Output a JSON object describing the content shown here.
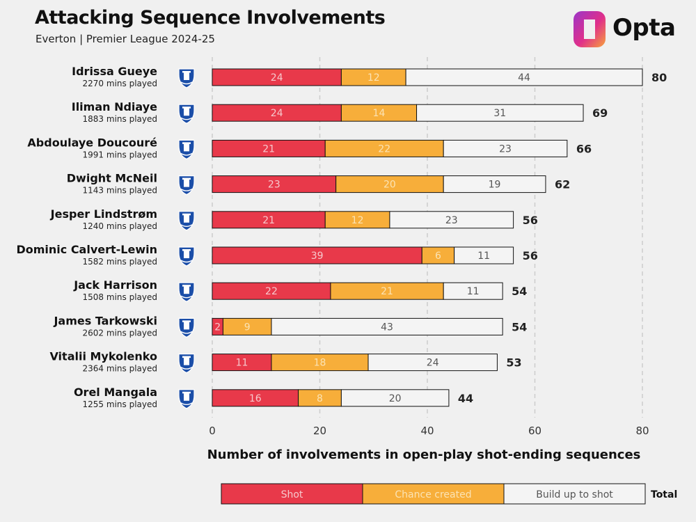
{
  "header": {
    "title": "Attacking Sequence Involvements",
    "subtitle": "Everton | Premier League 2024-25",
    "brand": "Opta"
  },
  "colors": {
    "shot": "#e8394a",
    "chance_created": "#f7ae3a",
    "build_up": "#f4f4f4",
    "bar_stroke": "#111111",
    "grid": "#cccccc",
    "background": "#f0f0f0"
  },
  "icons": {
    "row_icon": "everton-crest-icon",
    "brand_logo": "opta-logo-icon"
  },
  "chart_data": {
    "type": "bar",
    "orientation": "horizontal",
    "stacked": true,
    "categories": [
      "Idrissa Gueye",
      "Iliman Ndiaye",
      "Abdoulaye Doucouré",
      "Dwight McNeil",
      "Jesper Lindstrøm",
      "Dominic Calvert-Lewin",
      "Jack Harrison",
      "James Tarkowski",
      "Vitalii Mykolenko",
      "Orel Mangala"
    ],
    "minutes": [
      "2270 mins played",
      "1883 mins played",
      "1991 mins played",
      "1143 mins played",
      "1240 mins played",
      "1582 mins played",
      "1508 mins played",
      "2602 mins played",
      "2364 mins played",
      "1255 mins played"
    ],
    "series": [
      {
        "name": "Shot",
        "values": [
          24,
          24,
          21,
          23,
          21,
          39,
          22,
          2,
          11,
          16
        ]
      },
      {
        "name": "Chance created",
        "values": [
          12,
          14,
          22,
          20,
          12,
          6,
          21,
          9,
          18,
          8
        ]
      },
      {
        "name": "Build up to shot",
        "values": [
          44,
          31,
          23,
          19,
          23,
          11,
          11,
          43,
          24,
          20
        ]
      }
    ],
    "totals": [
      80,
      69,
      66,
      62,
      56,
      56,
      54,
      54,
      53,
      44
    ],
    "total_legend_label": "Total",
    "xlabel": "Number of involvements in open-play shot-ending sequences",
    "xlim": [
      0,
      80
    ],
    "xticks": [
      0,
      20,
      40,
      60,
      80
    ],
    "grid": true,
    "legend_position": "bottom"
  }
}
